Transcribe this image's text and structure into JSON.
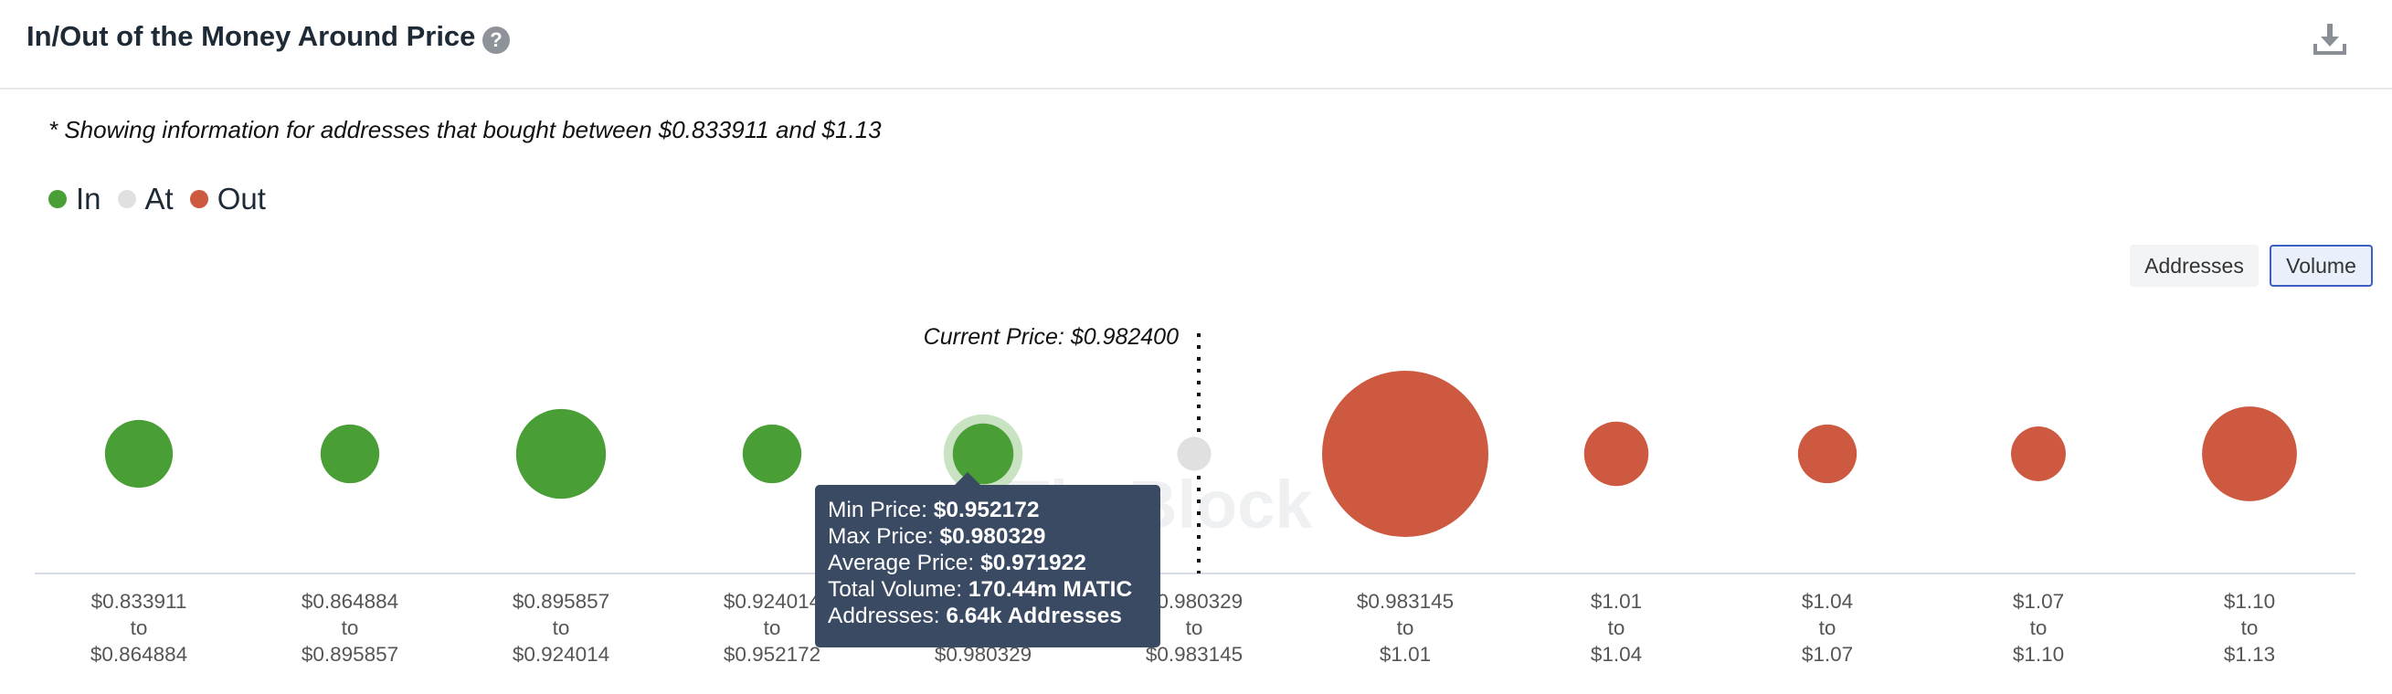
{
  "header": {
    "title": "In/Out of the Money Around Price",
    "help_icon": "question-circle-icon",
    "download_icon": "download-icon"
  },
  "note": "* Showing information for addresses that bought between $0.833911 and $1.13",
  "legend": [
    {
      "label": "In",
      "color": "#4a9e36"
    },
    {
      "label": "At",
      "color": "#e0e0e0"
    },
    {
      "label": "Out",
      "color": "#cc5940"
    }
  ],
  "toggles": {
    "addresses": "Addresses",
    "volume": "Volume",
    "selected": "volume"
  },
  "watermark": "TheBlock",
  "tooltip": {
    "min_label": "Min Price:",
    "min_value": "$0.952172",
    "max_label": "Max Price:",
    "max_value": "$0.980329",
    "avg_label": "Average Price:",
    "avg_value": "$0.971922",
    "vol_label": "Total Volume:",
    "vol_value": "170.44m MATIC",
    "addr_label": "Addresses:",
    "addr_value": "6.64k Addresses"
  },
  "chart_data": {
    "type": "bubble",
    "current_price_label": "Current Price: $0.982400",
    "current_price": 0.9824,
    "size_measure": "volume",
    "buckets": [
      {
        "from": "$0.833911",
        "to": "$0.864884",
        "status": "in",
        "size": 100
      },
      {
        "from": "$0.864884",
        "to": "$0.895857",
        "status": "in",
        "size": 75
      },
      {
        "from": "$0.895857",
        "to": "$0.924014",
        "status": "in",
        "size": 175
      },
      {
        "from": "$0.924014",
        "to": "$0.952172",
        "status": "in",
        "size": 75
      },
      {
        "from": "$0.952172",
        "to": "$0.980329",
        "status": "in",
        "size": 80,
        "hovered": true
      },
      {
        "from": "$0.980329",
        "to": "$0.983145",
        "status": "at",
        "size": 25
      },
      {
        "from": "$0.983145",
        "to": "$1.01",
        "status": "out",
        "size": 600
      },
      {
        "from": "$1.01",
        "to": "$1.04",
        "status": "out",
        "size": 90
      },
      {
        "from": "$1.04",
        "to": "$1.07",
        "status": "out",
        "size": 75
      },
      {
        "from": "$1.07",
        "to": "$1.10",
        "status": "out",
        "size": 65
      },
      {
        "from": "$1.10",
        "to": "$1.13",
        "status": "out",
        "size": 195
      }
    ],
    "connector": "to"
  }
}
